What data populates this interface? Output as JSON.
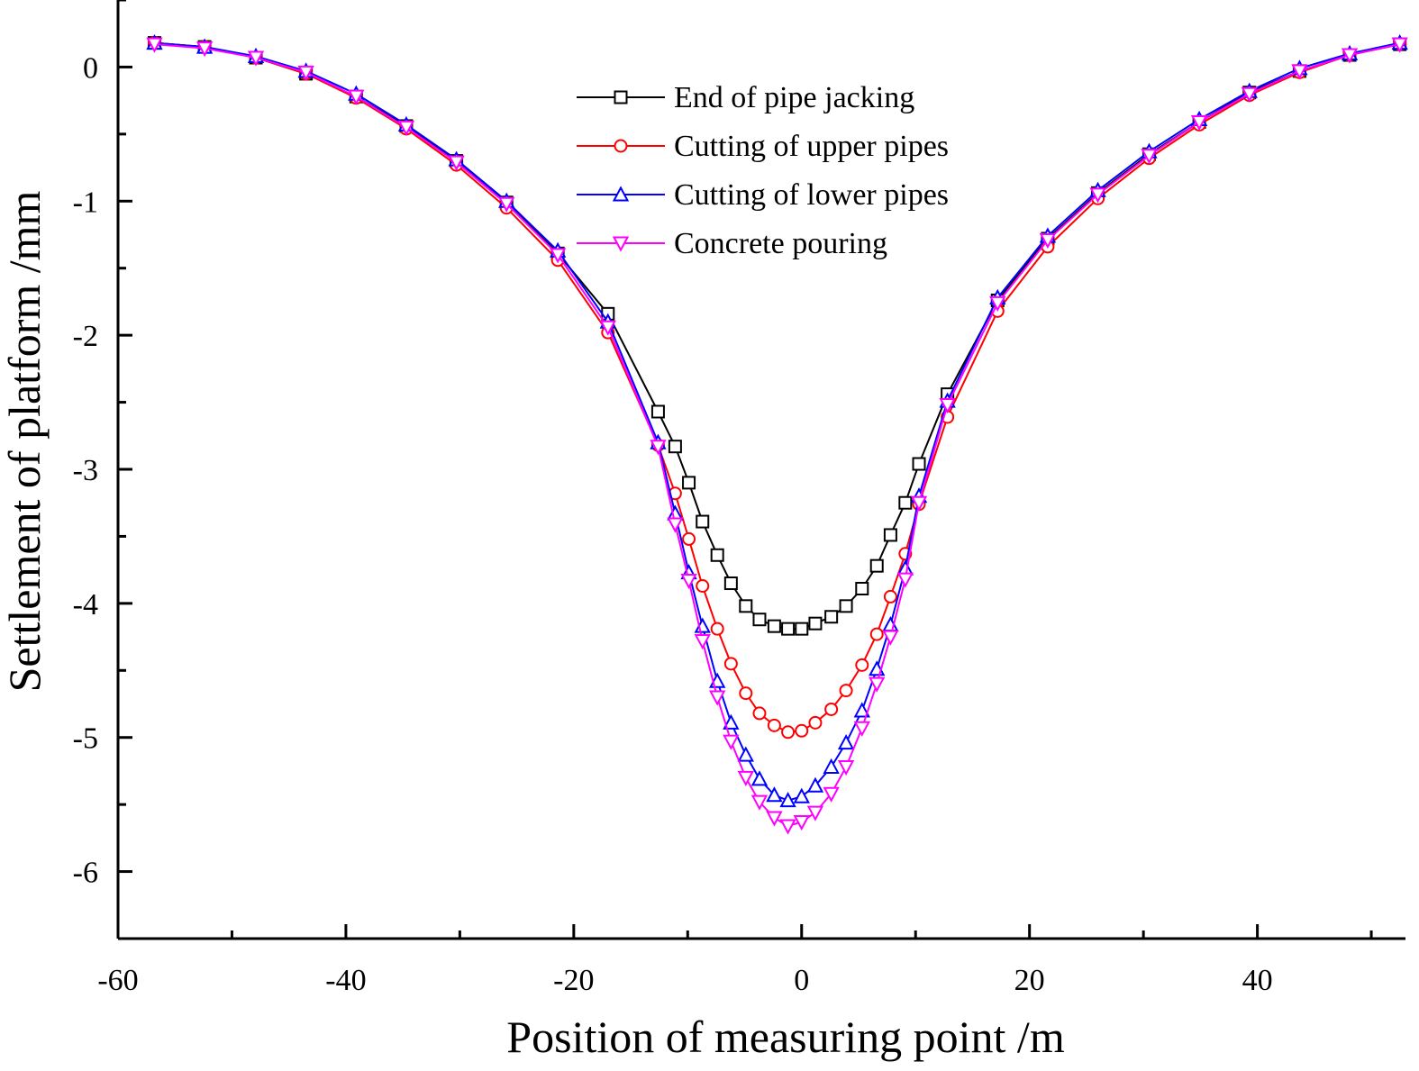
{
  "chart_data": {
    "type": "line",
    "xlabel": "Position of measuring point /m",
    "ylabel": "Settlement of platform /mm",
    "xlim": [
      -60,
      53
    ],
    "ylim": [
      -6.5,
      0.5
    ],
    "xticks": [
      -60,
      -40,
      -20,
      0,
      20,
      40
    ],
    "yticks": [
      0,
      -1,
      -2,
      -3,
      -4,
      -5,
      -6
    ],
    "legend_position": "top-center",
    "series": [
      {
        "name": "End of pipe jacking",
        "color": "#000000",
        "marker": "square",
        "x": [
          -56.8,
          -52.4,
          -47.9,
          -43.5,
          -39.1,
          -34.7,
          -30.3,
          -25.9,
          -21.4,
          -17.0,
          -12.6,
          -11.1,
          -9.9,
          -8.7,
          -7.4,
          -6.2,
          -4.9,
          -3.7,
          -2.4,
          -1.2,
          0,
          1.2,
          2.6,
          3.9,
          5.3,
          6.6,
          7.8,
          9.1,
          10.3,
          12.8,
          17.2,
          21.6,
          26.0,
          30.5,
          34.9,
          39.3,
          43.7,
          48.1,
          52.5
        ],
        "y": [
          0.18,
          0.15,
          0.07,
          -0.05,
          -0.22,
          -0.44,
          -0.7,
          -1.01,
          -1.39,
          -1.84,
          -2.57,
          -2.83,
          -3.1,
          -3.39,
          -3.64,
          -3.85,
          -4.02,
          -4.12,
          -4.17,
          -4.19,
          -4.19,
          -4.15,
          -4.1,
          -4.02,
          -3.89,
          -3.72,
          -3.49,
          -3.25,
          -2.96,
          -2.44,
          -1.74,
          -1.28,
          -0.94,
          -0.65,
          -0.41,
          -0.19,
          -0.03,
          0.09,
          0.17
        ]
      },
      {
        "name": "Cutting of upper pipes",
        "color": "#ff0000",
        "marker": "circle",
        "x": [
          -56.8,
          -52.4,
          -47.9,
          -43.5,
          -39.1,
          -34.7,
          -30.3,
          -25.9,
          -21.4,
          -17.0,
          -12.6,
          -11.1,
          -9.9,
          -8.7,
          -7.4,
          -6.2,
          -4.9,
          -3.7,
          -2.4,
          -1.2,
          0,
          1.2,
          2.6,
          3.9,
          5.3,
          6.6,
          7.8,
          9.1,
          10.3,
          12.8,
          17.2,
          21.6,
          26.0,
          30.5,
          34.9,
          39.3,
          43.7,
          48.1,
          52.5
        ],
        "y": [
          0.18,
          0.15,
          0.07,
          -0.05,
          -0.23,
          -0.46,
          -0.73,
          -1.05,
          -1.44,
          -1.98,
          -2.82,
          -3.18,
          -3.52,
          -3.87,
          -4.19,
          -4.45,
          -4.67,
          -4.82,
          -4.91,
          -4.96,
          -4.95,
          -4.89,
          -4.79,
          -4.65,
          -4.46,
          -4.23,
          -3.95,
          -3.63,
          -3.26,
          -2.61,
          -1.82,
          -1.34,
          -0.98,
          -0.68,
          -0.43,
          -0.21,
          -0.04,
          0.09,
          0.17
        ]
      },
      {
        "name": "Cutting of lower pipes",
        "color": "#0000ff",
        "marker": "triangle-up",
        "x": [
          -56.8,
          -52.4,
          -47.9,
          -43.5,
          -39.1,
          -34.7,
          -30.3,
          -25.9,
          -21.4,
          -17.0,
          -12.6,
          -11.1,
          -9.9,
          -8.7,
          -7.4,
          -6.2,
          -4.9,
          -3.7,
          -2.4,
          -1.2,
          0,
          1.2,
          2.6,
          3.9,
          5.3,
          6.6,
          7.8,
          9.1,
          10.3,
          12.8,
          17.2,
          21.6,
          26.0,
          30.5,
          34.9,
          39.3,
          43.7,
          48.1,
          52.5
        ],
        "y": [
          0.18,
          0.15,
          0.08,
          -0.03,
          -0.2,
          -0.43,
          -0.69,
          -1.0,
          -1.37,
          -1.9,
          -2.8,
          -3.33,
          -3.77,
          -4.17,
          -4.58,
          -4.89,
          -5.13,
          -5.31,
          -5.43,
          -5.47,
          -5.44,
          -5.36,
          -5.22,
          -5.04,
          -4.8,
          -4.49,
          -4.16,
          -3.74,
          -3.2,
          -2.49,
          -1.72,
          -1.26,
          -0.92,
          -0.63,
          -0.39,
          -0.18,
          -0.01,
          0.1,
          0.18
        ]
      },
      {
        "name": "Concrete pouring",
        "color": "#ff00ff",
        "marker": "triangle-down",
        "x": [
          -56.8,
          -52.4,
          -47.9,
          -43.5,
          -39.1,
          -34.7,
          -30.3,
          -25.9,
          -21.4,
          -17.0,
          -12.6,
          -11.1,
          -9.9,
          -8.7,
          -7.4,
          -6.2,
          -4.9,
          -3.7,
          -2.4,
          -1.2,
          0,
          1.2,
          2.6,
          3.9,
          5.3,
          6.6,
          7.8,
          9.1,
          10.3,
          12.8,
          17.2,
          21.6,
          26.0,
          30.5,
          34.9,
          39.3,
          43.7,
          48.1,
          52.5
        ],
        "y": [
          0.17,
          0.14,
          0.07,
          -0.04,
          -0.22,
          -0.45,
          -0.71,
          -1.02,
          -1.4,
          -1.94,
          -2.83,
          -3.41,
          -3.83,
          -4.28,
          -4.7,
          -5.03,
          -5.3,
          -5.48,
          -5.6,
          -5.66,
          -5.63,
          -5.56,
          -5.42,
          -5.22,
          -4.93,
          -4.6,
          -4.25,
          -3.82,
          -3.25,
          -2.52,
          -1.76,
          -1.29,
          -0.95,
          -0.66,
          -0.41,
          -0.2,
          -0.03,
          0.09,
          0.17
        ]
      }
    ]
  }
}
